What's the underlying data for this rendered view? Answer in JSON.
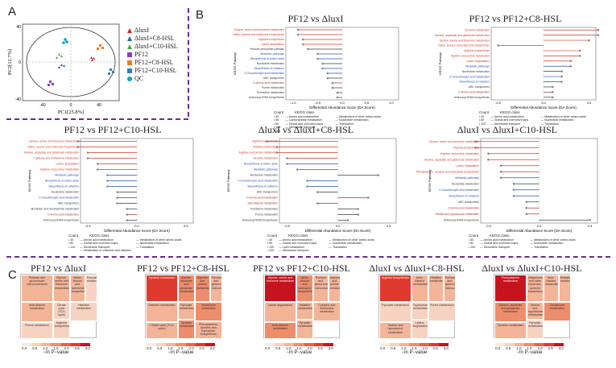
{
  "panel_letters": [
    "A",
    "B",
    "C"
  ],
  "pca": {
    "xlabel": "PC1[25.8%]",
    "ylabel": "PC2[12.7%]",
    "xticks": [
      "-40",
      "0",
      "40"
    ],
    "yticks": [
      "40",
      "0",
      "-40"
    ],
    "legend": [
      {
        "label": "ΔluxI",
        "color": "#d6262c",
        "shape": "triangle"
      },
      {
        "label": "ΔluxI+C8-HSL",
        "color": "#2b5fb5",
        "shape": "triangle"
      },
      {
        "label": "ΔluxI+C10-HSL",
        "color": "#4aa64a",
        "shape": "triangle"
      },
      {
        "label": "PF12",
        "color": "#8a3fb8",
        "shape": "square"
      },
      {
        "label": "PF12+C8-HSL",
        "color": "#f07b1f",
        "shape": "square"
      },
      {
        "label": "PF12+C10-HSL",
        "color": "#2f7fc1",
        "shape": "square"
      },
      {
        "label": "QC",
        "color": "#17a3b8",
        "shape": "circle"
      }
    ]
  },
  "kegg_plots": [
    {
      "title": "PF12 vs ΔluxI",
      "ylabel": "KEGG Pathway",
      "xlabel": "Differential Abundance Score (DA Score)",
      "xticks": [
        "-1.0",
        "-0.5",
        "0.0",
        "0.5",
        "1.0"
      ],
      "pathways": [
        {
          "name": "Glycine, serine and threonine metabolism",
          "cls": "aa",
          "score": -0.9
        },
        {
          "name": "Valine, leucine and isoleucine biosynthesis",
          "cls": "aa",
          "score": -0.9
        },
        {
          "name": "Arginine biosynthesis",
          "cls": "aa",
          "score": -0.8
        },
        {
          "name": "Lysine degradation",
          "cls": "aa",
          "score": -0.8
        },
        {
          "name": "Pentose phosphate pathway",
          "cls": "carb",
          "score": -0.7
        },
        {
          "name": "Metabolic pathways",
          "cls": "global",
          "score": -0.5
        },
        {
          "name": "Biosynthesis of amino acids",
          "cls": "global",
          "score": -0.5
        },
        {
          "name": "Nucleotide metabolism",
          "cls": "nuc",
          "score": -0.4
        },
        {
          "name": "Biosynthesis of cofactors",
          "cls": "global",
          "score": -0.4
        },
        {
          "name": "2-Oxocarboxylic acid metabolism",
          "cls": "global",
          "score": -0.3
        },
        {
          "name": "ABC transporters",
          "cls": "membrane",
          "score": -0.3
        },
        {
          "name": "D-Amino acid metabolism",
          "cls": "other",
          "score": -0.2
        },
        {
          "name": "Purine metabolism",
          "cls": "nuc",
          "score": -0.2
        },
        {
          "name": "Pyrimidine metabolism",
          "cls": "nuc",
          "score": -0.1
        },
        {
          "name": "Aminoacyl-tRNA biosynthesis",
          "cls": "trans",
          "score": -0.1
        }
      ],
      "legend_count": [
        "40",
        "60",
        "80",
        "120",
        "160"
      ],
      "legend_classes": [
        "Amino acid metabolism",
        "Carbohydrate metabolism",
        "Global and overview maps",
        "Membrane transport",
        "Metabolism of other amino acids",
        "Nucleotide metabolism",
        "Translation"
      ]
    },
    {
      "title": "PF12 vs PF12+C8-HSL",
      "ylabel": "KEGG Pathway",
      "xlabel": "Differential Abundance Score (DA Score)",
      "xticks": [
        "-0.5",
        "0.0",
        "0.5"
      ],
      "pathways": [
        {
          "name": "Tyrosine metabolism",
          "cls": "aa",
          "score": 0.6
        },
        {
          "name": "Alanine, aspartate and glutamate metabolism",
          "cls": "aa",
          "score": 0.6
        },
        {
          "name": "Glycine, serine and threonine metabolism",
          "cls": "aa",
          "score": 0.5
        },
        {
          "name": "Valine, leucine and isoleucine biosynthesis",
          "cls": "aa",
          "score": -0.5
        },
        {
          "name": "Arginine biosynthesis",
          "cls": "aa",
          "score": 0.4
        },
        {
          "name": "Arginine and proline metabolism",
          "cls": "aa",
          "score": 0.4
        },
        {
          "name": "Lysine degradation",
          "cls": "aa",
          "score": 0.3
        },
        {
          "name": "Metabolic pathways",
          "cls": "global",
          "score": 0.3
        },
        {
          "name": "Nucleotide metabolism",
          "cls": "nuc",
          "score": 0.2
        },
        {
          "name": "2-Oxocarboxylic acid metabolism",
          "cls": "global",
          "score": 0.2
        },
        {
          "name": "Biosynthesis of cofactors",
          "cls": "global",
          "score": 0.2
        },
        {
          "name": "ABC transporters",
          "cls": "membrane",
          "score": 0.1
        },
        {
          "name": "D-Amino acid metabolism",
          "cls": "other",
          "score": 0.1
        },
        {
          "name": "Aminoacyl-tRNA biosynthesis",
          "cls": "trans",
          "score": 0.1
        }
      ],
      "legend_count": [
        "40",
        "80",
        "120"
      ],
      "legend_classes": [
        "Amino acid metabolism",
        "Global and overview maps",
        "Membrane transport",
        "Metabolism of other amino acids",
        "Nucleotide metabolism",
        "Translation"
      ]
    },
    {
      "title": "PF12 vs PF12+C10-HSL",
      "ylabel": "KEGG Pathway",
      "xlabel": "Differential Abundance Score (DA Score)",
      "xticks": [
        "-0.5",
        "0.0",
        "0.5"
      ],
      "pathways": [
        {
          "name": "Glycine, serine and threonine metabolism",
          "cls": "aa",
          "score": -0.6
        },
        {
          "name": "Valine, leucine and isoleucine biosynthesis",
          "cls": "aa",
          "score": -0.6
        },
        {
          "name": "Alanine, aspartate and glutamate metabolism",
          "cls": "aa",
          "score": -0.5
        },
        {
          "name": "Cysteine and methionine metabolism",
          "cls": "aa",
          "score": -0.5
        },
        {
          "name": "Lysine degradation",
          "cls": "aa",
          "score": -0.4
        },
        {
          "name": "Arginine and proline metabolism",
          "cls": "aa",
          "score": -0.4
        },
        {
          "name": "Metabolic pathways",
          "cls": "global",
          "score": -0.3
        },
        {
          "name": "Biosynthesis of amino acids",
          "cls": "global",
          "score": -0.3
        },
        {
          "name": "Biosynthesis of cofactors",
          "cls": "global",
          "score": -0.3
        },
        {
          "name": "Nucleotide metabolism",
          "cls": "nuc",
          "score": -0.2
        },
        {
          "name": "2-Oxocarboxylic acid metabolism",
          "cls": "global",
          "score": -0.2
        },
        {
          "name": "ABC transporters",
          "cls": "membrane",
          "score": -0.2
        },
        {
          "name": "Nicotinate and nicotinamide metabolism",
          "cls": "cofactor",
          "score": -0.1
        },
        {
          "name": "D-Amino acid metabolism",
          "cls": "other",
          "score": -0.1
        },
        {
          "name": "Aminoacyl-tRNA biosynthesis",
          "cls": "trans",
          "score": -0.1
        }
      ],
      "legend_count": [
        "40",
        "80",
        "120"
      ],
      "legend_classes": [
        "Amino acid metabolism",
        "Global and overview maps",
        "Membrane transport",
        "Metabolism of cofactors and vitamins",
        "Metabolism of other amino acids",
        "Nucleotide metabolism",
        "Translation"
      ]
    },
    {
      "title": "ΔluxI vs ΔluxI+C8-HSL",
      "ylabel": "KEGG Pathway",
      "xlabel": "Differential Abundance Score (DA Score)",
      "xticks": [
        "-0.5",
        "0.0",
        "0.5"
      ],
      "pathways": [
        {
          "name": "Arginine biosynthesis",
          "cls": "aa",
          "score": -0.7
        },
        {
          "name": "Histidine metabolism",
          "cls": "aa",
          "score": -0.6
        },
        {
          "name": "Arginine and proline metabolism",
          "cls": "aa",
          "score": -0.6
        },
        {
          "name": "Tyrosine metabolism",
          "cls": "aa",
          "score": -0.5
        },
        {
          "name": "Biosynthesis of amino acids",
          "cls": "global",
          "score": -0.5
        },
        {
          "name": "Metabolic pathways",
          "cls": "global",
          "score": -0.4
        },
        {
          "name": "Nucleotide metabolism",
          "cls": "nuc",
          "score": 0.4
        },
        {
          "name": "2-Oxocarboxylic acid metabolism",
          "cls": "global",
          "score": -0.3
        },
        {
          "name": "Biosynthesis of cofactors",
          "cls": "global",
          "score": -0.3
        },
        {
          "name": "ABC transporters",
          "cls": "membrane",
          "score": -0.2
        },
        {
          "name": "D-Amino acid metabolism",
          "cls": "other",
          "score": 0.3
        },
        {
          "name": "beta-Alanine metabolism",
          "cls": "other",
          "score": -0.2
        },
        {
          "name": "Pyrimidine metabolism",
          "cls": "nuc",
          "score": 0.2
        },
        {
          "name": "Purine metabolism",
          "cls": "nuc",
          "score": 0.2
        },
        {
          "name": "Aminoacyl-tRNA biosynthesis",
          "cls": "trans",
          "score": 0.1
        }
      ],
      "legend_count": [
        "40",
        "80",
        "100",
        "120"
      ],
      "legend_classes": [
        "Amino acid metabolism",
        "Global and overview maps",
        "Lipid metabolism",
        "Membrane transport",
        "Metabolism of other amino acids",
        "Nucleotide metabolism",
        "Translation"
      ]
    },
    {
      "title": "ΔluxI vs ΔluxI+C10-HSL",
      "ylabel": "KEGG Pathway",
      "xlabel": "Differential Abundance Score (DA Score)",
      "xticks": [
        "-0.4",
        "0.0",
        "0.4"
      ],
      "pathways": [
        {
          "name": "Glycine, serine and threonine metabolism",
          "cls": "aa",
          "score": -0.5
        },
        {
          "name": "Arginine biosynthesis",
          "cls": "aa",
          "score": -0.5
        },
        {
          "name": "Arginine and proline metabolism",
          "cls": "aa",
          "score": -0.4
        },
        {
          "name": "Alanine, aspartate and glutamate metabolism",
          "cls": "aa",
          "score": -0.4
        },
        {
          "name": "Lysine degradation",
          "cls": "aa",
          "score": -0.3
        },
        {
          "name": "Phenylalanine, tyrosine and tryptophan biosynthesis",
          "cls": "aa",
          "score": -0.3
        },
        {
          "name": "Metabolic pathways",
          "cls": "global",
          "score": -0.3
        },
        {
          "name": "Nucleotide metabolism",
          "cls": "nuc",
          "score": -0.2
        },
        {
          "name": "2-Oxocarboxylic acid metabolism",
          "cls": "global",
          "score": -0.2
        },
        {
          "name": "Biosynthesis of cofactors",
          "cls": "global",
          "score": -0.2
        },
        {
          "name": "ABC transporters",
          "cls": "membrane",
          "score": -0.1
        },
        {
          "name": "D-Amino acid metabolism",
          "cls": "other",
          "score": -0.1
        },
        {
          "name": "Taurine and hypotaurine metabolism",
          "cls": "other",
          "score": -0.1
        },
        {
          "name": "Aminoacyl-tRNA biosynthesis",
          "cls": "trans",
          "score": 0.4
        }
      ],
      "legend_count": [
        "60",
        "80",
        "100"
      ],
      "legend_classes": [
        "Amino acid metabolism",
        "Global and overview maps",
        "Membrane transport",
        "Metabolism of other amino acids",
        "Nucleotide metabolism",
        "Translation"
      ]
    }
  ],
  "legend_headers": {
    "count": "Count",
    "kegg": "KEGG.class"
  },
  "treemaps": [
    {
      "title": "PF12 vs ΔluxI",
      "tiles": [
        {
          "label": "Pentose and glucuronate interconversions",
          "v": 1.0
        },
        {
          "label": "Glycine, serine and threonine metabolism",
          "v": 1.1
        },
        {
          "label": "Valine, leucine and isoleucine biosynthesis",
          "v": 1.2
        },
        {
          "label": "Pyruvate metabolism",
          "v": 0.7
        },
        {
          "label": "beta-Alanine metabolism",
          "v": 0.8
        },
        {
          "label": "Citrate cycle (TCA cycle)",
          "v": 0.5
        },
        {
          "label": "Purine metabolism",
          "v": 0.4
        },
        {
          "label": "Arginine biosynthesis",
          "v": 0.5
        },
        {
          "label": "Histidine metabolism",
          "v": 0.6
        }
      ]
    },
    {
      "title": "PF12 vs PF12+C8-HSL",
      "tiles": [
        {
          "label": "Tyrosine metabolism",
          "v": 2.6
        },
        {
          "label": "Alanine, aspartate and glutamate metabolism",
          "v": 1.4
        },
        {
          "label": "Arginine and proline metabolism",
          "v": 1.3
        },
        {
          "label": "Pentose and glucuronate interconversions",
          "v": 1.0
        },
        {
          "label": "Histidine metabolism",
          "v": 1.1
        },
        {
          "label": "Pyruvate metabolism",
          "v": 0.9
        },
        {
          "label": "Citrate cycle (TCA cycle)",
          "v": 0.8
        },
        {
          "label": "Tyrosine metabolism",
          "v": 1.5
        },
        {
          "label": "Glutathione metabolism",
          "v": 1.6
        },
        {
          "label": "Phenylalanine, tyrosine and tryptophan biosynthesis",
          "v": 1.2
        }
      ]
    },
    {
      "title": "PF12 vs PF12+C10-HSL",
      "tiles": [
        {
          "label": "Glycine, serine and threonine metabolism",
          "v": 3.0
        },
        {
          "label": "Valine, leucine and isoleucine biosynthesis",
          "v": 1.4
        },
        {
          "label": "Pentose and glucuronate interconversions",
          "v": 1.0
        },
        {
          "label": "Arginine and proline metabolism",
          "v": 1.2
        },
        {
          "label": "Lysine degradation",
          "v": 1.1
        },
        {
          "label": "Histidine metabolism",
          "v": 0.9
        },
        {
          "label": "beta-Alanine metabolism",
          "v": 1.3
        },
        {
          "label": "Pyruvate metabolism",
          "v": 0.8
        },
        {
          "label": "Cysteine and methionine metabolism",
          "v": 1.0
        }
      ]
    },
    {
      "title": "ΔluxI vs ΔluxI+C8-HSL",
      "tiles": [
        {
          "label": "Arginine biosynthesis",
          "v": 2.7
        },
        {
          "label": "beta-Alanine metabolism",
          "v": 1.0
        },
        {
          "label": "Histidine metabolism",
          "v": 0.8
        },
        {
          "label": "Pentose and glucuronate interconversions",
          "v": 0.9
        },
        {
          "label": "Pyruvate metabolism",
          "v": 0.7
        },
        {
          "label": "Tryptophan metabolism",
          "v": 0.6
        },
        {
          "label": "Taurine and hypotaurine metabolism",
          "v": 0.8
        },
        {
          "label": "Lysine degradation",
          "v": 0.5
        },
        {
          "label": "Purine metabolism",
          "v": 0.4
        }
      ]
    },
    {
      "title": "ΔluxI vs ΔluxI+C10-HSL",
      "tiles": [
        {
          "label": "Phenylalanine metabolism",
          "v": 3.2
        },
        {
          "label": "Ubiquinone and other terpenoid-quinone biosynthesis",
          "v": 1.2
        },
        {
          "label": "beta-Alanine metabolism",
          "v": 1.0
        },
        {
          "label": "Histidine metabolism",
          "v": 0.9
        },
        {
          "label": "Alanine, aspartate and glutamate metabolism",
          "v": 1.4
        },
        {
          "label": "Taurine and hypotaurine metabolism",
          "v": 1.0
        },
        {
          "label": "Tyrosine metabolism",
          "v": 0.9
        },
        {
          "label": "Pyruvate metabolism",
          "v": 0.7
        },
        {
          "label": "Glutathione metabolism",
          "v": 1.5
        }
      ]
    }
  ],
  "treemap_scale": {
    "ticks": [
      "0.0",
      "0.5",
      "1.0",
      "1.5",
      "2.0",
      "2.5",
      "3.0"
    ],
    "label": "−ln P−value",
    "colors": [
      "#fbeae3",
      "#f8d2c1",
      "#f4b498",
      "#ee8d6c",
      "#e86347",
      "#de3b2e",
      "#c6141f"
    ]
  },
  "class_colors": {
    "aa": "#d53a2b",
    "global": "#2b4fb5",
    "nuc": "#3a3a3a",
    "membrane": "#3a3a3a",
    "other": "#b03030",
    "trans": "#3a3a3a",
    "carb": "#3a3a3a",
    "cofactor": "#3a3a3a"
  }
}
